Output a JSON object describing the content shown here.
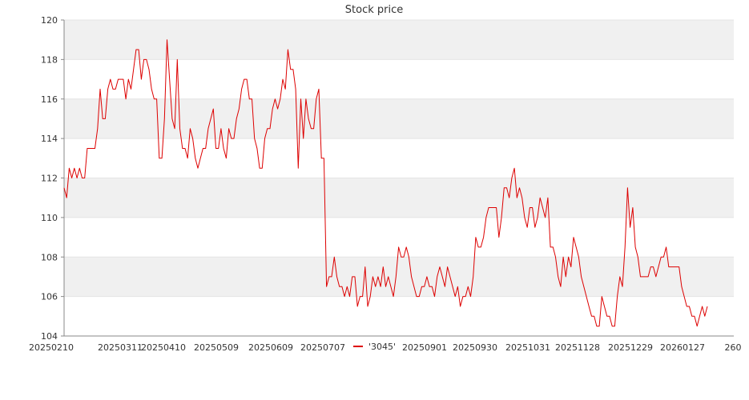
{
  "chart_data": {
    "type": "line",
    "title": "Stock price",
    "xlabel": "",
    "ylabel": "",
    "ylim": [
      104,
      120
    ],
    "y_ticks": [
      "104",
      "106",
      "108",
      "110",
      "112",
      "114",
      "116",
      "118",
      "120"
    ],
    "x_tick_labels": [
      "20250210",
      "20250311",
      "20250410",
      "20250509",
      "20250609",
      "20250707",
      "20250901",
      "20250930",
      "20251031",
      "20251128",
      "20251229",
      "20260127",
      "260"
    ],
    "grid": true,
    "background_bands": "alternating light gray / white horizontal bands",
    "legend": {
      "position": "bottom-center",
      "entries": [
        {
          "label": "'3045'",
          "color": "#dd0000"
        }
      ]
    },
    "series": [
      {
        "name": "'3045'",
        "color": "#dd0000",
        "values": [
          111.5,
          111.0,
          112.5,
          112.0,
          112.5,
          112.0,
          112.5,
          112.0,
          112.0,
          113.5,
          113.5,
          113.5,
          113.5,
          114.5,
          116.5,
          115.0,
          115.0,
          116.5,
          117.0,
          116.5,
          116.5,
          117.0,
          117.0,
          117.0,
          116.0,
          117.0,
          116.5,
          117.5,
          118.5,
          118.5,
          117.0,
          118.0,
          118.0,
          117.5,
          116.5,
          116.0,
          116.0,
          113.0,
          113.0,
          115.0,
          119.0,
          117.0,
          115.0,
          114.5,
          118.0,
          114.5,
          113.5,
          113.5,
          113.0,
          114.5,
          114.0,
          113.0,
          112.5,
          113.0,
          113.5,
          113.5,
          114.5,
          115.0,
          115.5,
          113.5,
          113.5,
          114.5,
          113.5,
          113.0,
          114.5,
          114.0,
          114.0,
          115.0,
          115.5,
          116.5,
          117.0,
          117.0,
          116.0,
          116.0,
          114.0,
          113.5,
          112.5,
          112.5,
          114.0,
          114.5,
          114.5,
          115.5,
          116.0,
          115.5,
          116.0,
          117.0,
          116.5,
          118.5,
          117.5,
          117.5,
          116.5,
          112.5,
          116.0,
          114.0,
          116.0,
          115.0,
          114.5,
          114.5,
          116.0,
          116.5,
          113.0,
          113.0,
          106.5,
          107.0,
          107.0,
          108.0,
          107.0,
          106.5,
          106.5,
          106.0,
          106.5,
          106.0,
          107.0,
          107.0,
          105.5,
          106.0,
          106.0,
          107.5,
          105.5,
          106.0,
          107.0,
          106.5,
          107.0,
          106.5,
          107.5,
          106.5,
          107.0,
          106.5,
          106.0,
          107.0,
          108.5,
          108.0,
          108.0,
          108.5,
          108.0,
          107.0,
          106.5,
          106.0,
          106.0,
          106.5,
          106.5,
          107.0,
          106.5,
          106.5,
          106.0,
          107.0,
          107.5,
          107.0,
          106.5,
          107.5,
          107.0,
          106.5,
          106.0,
          106.5,
          105.5,
          106.0,
          106.0,
          106.5,
          106.0,
          107.0,
          109.0,
          108.5,
          108.5,
          109.0,
          110.0,
          110.5,
          110.5,
          110.5,
          110.5,
          109.0,
          110.0,
          111.5,
          111.5,
          111.0,
          112.0,
          112.5,
          111.0,
          111.5,
          111.0,
          110.0,
          109.5,
          110.5,
          110.5,
          109.5,
          110.0,
          111.0,
          110.5,
          110.0,
          111.0,
          108.5,
          108.5,
          108.0,
          107.0,
          106.5,
          108.0,
          107.0,
          108.0,
          107.5,
          109.0,
          108.5,
          108.0,
          107.0,
          106.5,
          106.0,
          105.5,
          105.0,
          105.0,
          104.5,
          104.5,
          106.0,
          105.5,
          105.0,
          105.0,
          104.5,
          104.5,
          106.0,
          107.0,
          106.5,
          108.5,
          111.5,
          109.5,
          110.5,
          108.5,
          108.0,
          107.0,
          107.0,
          107.0,
          107.0,
          107.5,
          107.5,
          107.0,
          107.5,
          108.0,
          108.0,
          108.5,
          107.5,
          107.5,
          107.5,
          107.5,
          107.5,
          106.5,
          106.0,
          105.5,
          105.5,
          105.0,
          105.0,
          104.5,
          105.0,
          105.5,
          105.0,
          105.5
        ]
      }
    ]
  }
}
